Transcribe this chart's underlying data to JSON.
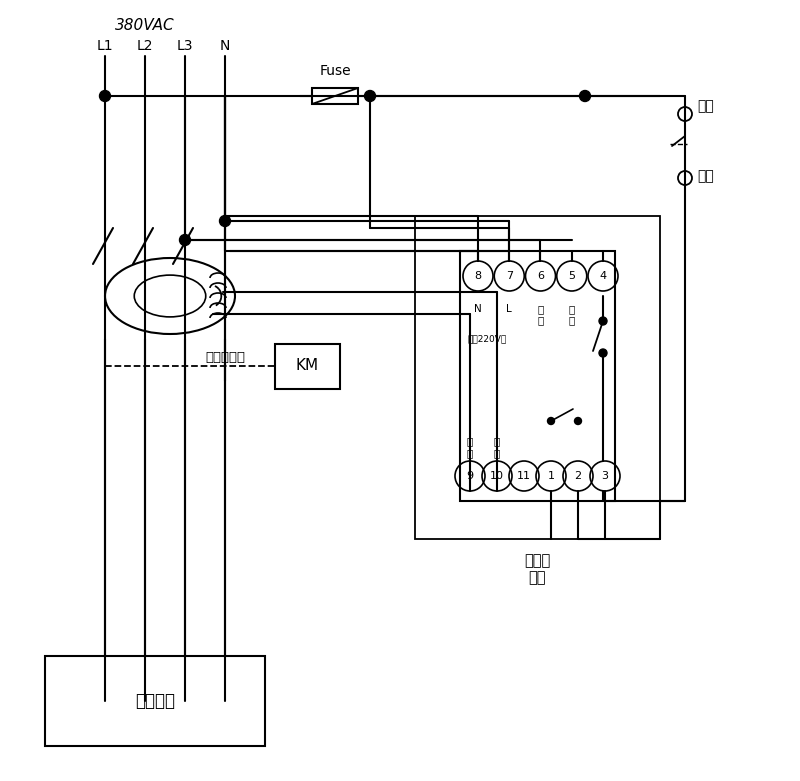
{
  "title": "",
  "bg_color": "#ffffff",
  "line_color": "#000000",
  "text_color": "#000000",
  "voltage_label": "380VAC",
  "phase_labels": [
    "L1",
    "L2",
    "L3",
    "N"
  ],
  "fuse_label": "Fuse",
  "km_label": "KM",
  "transformer_label": "零序互感器",
  "device_label": "用户设备",
  "relay_label_top": [
    "自锁",
    "开关"
  ],
  "terminal_top": [
    "8",
    "7",
    "6",
    "5",
    "4"
  ],
  "terminal_top_labels": [
    "N",
    "L",
    "试\n验",
    "试\n验",
    ""
  ],
  "terminal_bottom": [
    "9",
    "10",
    "11",
    "1",
    "2",
    "3"
  ],
  "terminal_bottom_labels": [
    "信\n号",
    "信\n号",
    "",
    "",
    "",
    ""
  ],
  "power_label": "电源220V～",
  "alarm_label": "接声光\n报警"
}
